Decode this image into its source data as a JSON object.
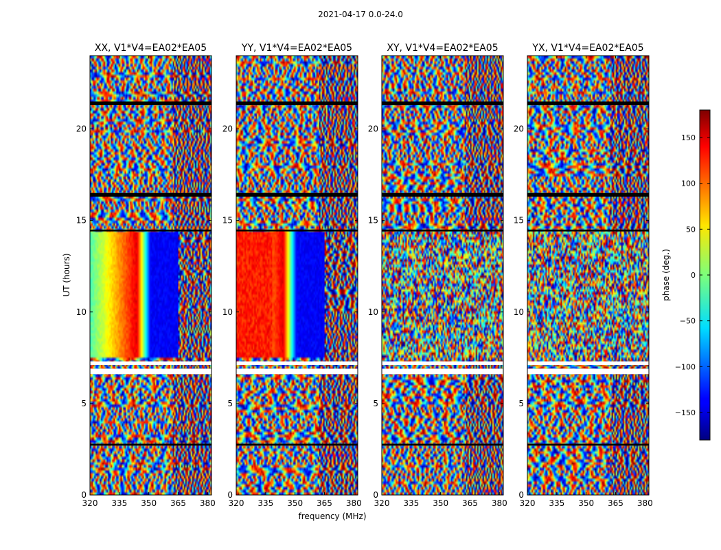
{
  "figure": {
    "suptitle": "2021-04-17 0.0-24.0"
  },
  "chart_data": {
    "type": "heatmap",
    "title": "2021-04-17 0.0-24.0",
    "xlabel": "frequency (MHz)",
    "ylabel": "UT (hours)",
    "xlim": [
      320,
      382
    ],
    "ylim": [
      0,
      24
    ],
    "xticks": [
      320,
      335,
      350,
      365,
      380
    ],
    "yticks": [
      0,
      5,
      10,
      15,
      20
    ],
    "panels": [
      {
        "name": "XX, V1*V4=EA02*EA05",
        "pol": "XX"
      },
      {
        "name": "YY, V1*V4=EA02*EA05",
        "pol": "YY"
      },
      {
        "name": "XY, V1*V4=EA02*EA05",
        "pol": "XY"
      },
      {
        "name": "YX, V1*V4=EA02*EA05",
        "pol": "YX"
      }
    ],
    "colorbar": {
      "label": "phase (deg.)",
      "range": [
        -180,
        180
      ],
      "ticks": [
        150,
        100,
        50,
        0,
        -50,
        -100,
        -150
      ],
      "colormap": "jet"
    },
    "gaps_hours": [
      [
        7.1,
        7.3
      ],
      [
        6.6,
        6.9
      ],
      [
        2.7,
        2.8
      ],
      [
        14.4,
        14.5
      ],
      [
        16.3,
        16.5
      ],
      [
        21.3,
        21.5
      ]
    ]
  }
}
